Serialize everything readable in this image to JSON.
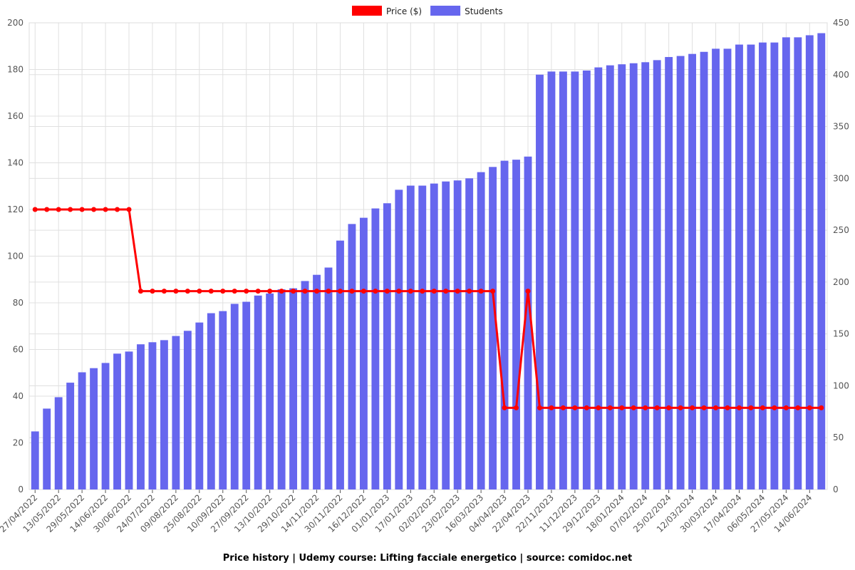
{
  "chart_data": {
    "type": "bar_line",
    "title": "Price history | Udemy course: Lifting facciale energetico | source: comidoc.net",
    "categories": [
      "27/04/2022",
      null,
      "13/05/2022",
      null,
      "29/05/2022",
      null,
      "14/06/2022",
      null,
      "30/06/2022",
      null,
      "24/07/2022",
      null,
      "09/08/2022",
      null,
      "25/08/2022",
      null,
      "10/09/2022",
      null,
      "27/09/2022",
      null,
      "13/10/2022",
      null,
      "29/10/2022",
      null,
      "14/11/2022",
      null,
      "30/11/2022",
      null,
      "16/12/2022",
      null,
      "01/01/2023",
      null,
      "17/01/2023",
      null,
      "02/02/2023",
      null,
      "23/02/2023",
      null,
      "16/03/2023",
      null,
      "04/04/2023",
      null,
      "22/04/2023",
      null,
      "22/11/2023",
      null,
      "11/12/2023",
      null,
      "29/12/2023",
      null,
      "18/01/2024",
      null,
      "07/02/2024",
      null,
      "25/02/2024",
      null,
      "12/03/2024",
      null,
      "30/03/2024",
      null,
      "17/04/2024",
      null,
      "06/05/2024",
      null,
      "27/05/2024",
      null,
      "14/06/2024",
      null
    ],
    "series": [
      {
        "name": "Price ($)",
        "color": "#ff0000",
        "kind": "line",
        "axis": "y",
        "values": [
          120,
          120,
          120,
          120,
          120,
          120,
          120,
          120,
          120,
          85,
          85,
          85,
          85,
          85,
          85,
          85,
          85,
          85,
          85,
          85,
          85,
          85,
          85,
          85,
          85,
          85,
          85,
          85,
          85,
          85,
          85,
          85,
          85,
          85,
          85,
          85,
          85,
          85,
          85,
          85,
          35,
          35,
          85,
          35,
          35,
          35,
          35,
          35,
          35,
          35,
          35,
          35,
          35,
          35,
          35,
          35,
          35,
          35,
          35,
          35,
          35,
          35,
          35,
          35,
          35,
          35,
          35,
          35
        ]
      },
      {
        "name": "Students",
        "color": "#6666ee",
        "kind": "bar",
        "axis": "y2",
        "values": [
          56,
          78,
          89,
          103,
          113,
          117,
          122,
          131,
          133,
          140,
          142,
          144,
          148,
          153,
          161,
          170,
          172,
          179,
          181,
          187,
          189,
          193,
          194,
          201,
          207,
          214,
          240,
          256,
          262,
          271,
          276,
          289,
          293,
          293,
          295,
          297,
          298,
          300,
          306,
          311,
          317,
          318,
          321,
          400,
          403,
          403,
          403,
          404,
          407,
          409,
          410,
          411,
          412,
          414,
          417,
          418,
          420,
          422,
          425,
          425,
          429,
          429,
          431,
          431,
          436,
          436,
          438,
          440
        ]
      }
    ],
    "ylim": [
      0,
      200
    ],
    "yticks": [
      0,
      20,
      40,
      60,
      80,
      100,
      120,
      140,
      160,
      180,
      200
    ],
    "y2lim": [
      0,
      450
    ],
    "y2ticks": [
      0,
      50,
      100,
      150,
      200,
      250,
      300,
      350,
      400,
      450
    ],
    "grid": true
  }
}
